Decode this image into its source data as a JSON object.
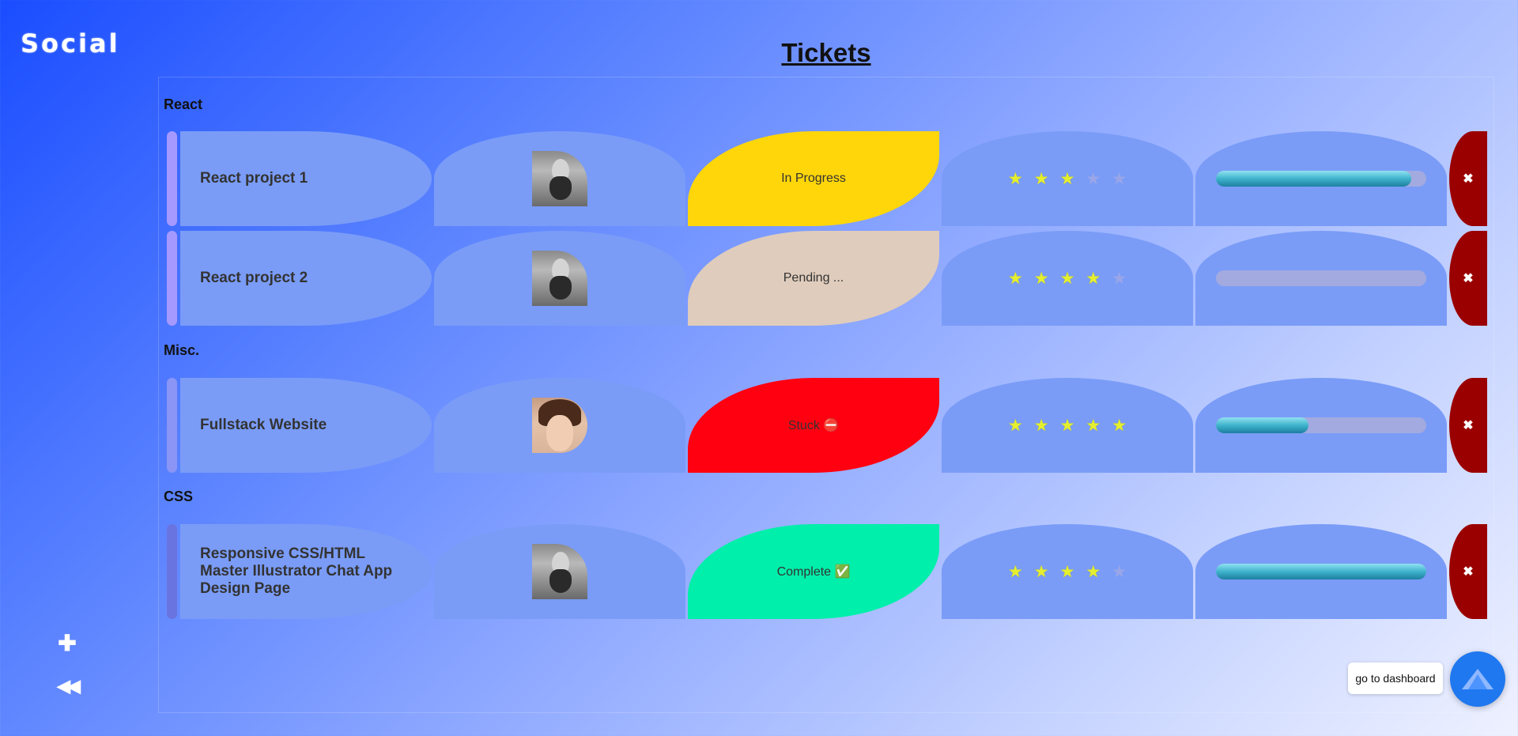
{
  "app": {
    "logo_text": "Social",
    "sidebar": {
      "add_icon": "plus-icon",
      "back_icon": "rewind-icon"
    }
  },
  "page_title": "Tickets",
  "groups": [
    {
      "title": "React",
      "handle_color": "#a599ff",
      "tickets": [
        {
          "name": "React project 1",
          "owner": "man",
          "status": "In Progress",
          "status_color": "#ffd60a",
          "rating": 3,
          "progress": 0.93
        },
        {
          "name": "React project 2",
          "owner": "man",
          "status": "Pending ...",
          "status_color": "#dfccbc",
          "rating": 4,
          "progress": 0
        }
      ]
    },
    {
      "title": "Misc.",
      "handle_color": "#8a95f5",
      "tickets": [
        {
          "name": "Fullstack Website",
          "owner": "woman",
          "status": "Stuck ⛔",
          "status_color": "#ff0010",
          "rating": 5,
          "progress": 0.44
        }
      ]
    },
    {
      "title": "CSS",
      "handle_color": "#6a74e0",
      "tickets": [
        {
          "name": "Responsive CSS/HTML Master Illustrator Chat App Design Page",
          "owner": "man",
          "status": "Complete ✅",
          "status_color": "#00efaa",
          "rating": 4,
          "progress": 1
        }
      ]
    }
  ],
  "delete_label": "✖",
  "dashboard": {
    "label": "go to dashboard",
    "icon": "dashboard-logo-icon"
  },
  "colors": {
    "delete": "#9b0000",
    "cell": "#7a9cf7",
    "dashboard_button": "#1f78ef"
  }
}
